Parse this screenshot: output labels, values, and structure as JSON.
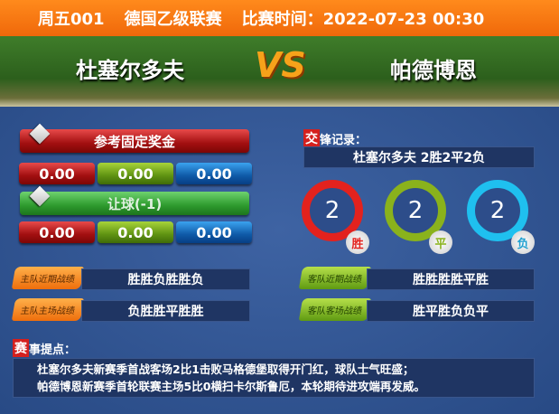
{
  "header": {
    "match_no": "周五001",
    "league": "德国乙级联赛",
    "time_label": "比赛时间：2022-07-23 00:30"
  },
  "teams": {
    "home": "杜塞尔多夫",
    "away": "帕德博恩",
    "vs": "VS"
  },
  "odds": {
    "fixed_title": "参考固定奖金",
    "fixed": [
      "0.00",
      "0.00",
      "0.00"
    ],
    "handicap_title": "让球(-1)",
    "handicap": [
      "0.00",
      "0.00",
      "0.00"
    ]
  },
  "h2h": {
    "icon_char": "交",
    "title": "锋记录：",
    "summary": "杜塞尔多夫 2胜2平2负",
    "win": {
      "count": "2",
      "label": "胜",
      "color": "#e3221e"
    },
    "draw": {
      "count": "2",
      "label": "平",
      "color": "#8ab21c"
    },
    "loss": {
      "count": "2",
      "label": "负",
      "color": "#1fc0ef"
    }
  },
  "form": {
    "home_recent_label": "主队近期战绩",
    "home_recent": "胜胜负胜胜负",
    "home_home_label": "主队主场战绩",
    "home_home": "负胜胜平胜胜",
    "away_recent_label": "客队近期战绩",
    "away_recent": "胜胜胜胜平胜",
    "away_away_label": "客队客场战绩",
    "away_away": "胜平胜负负平"
  },
  "tips": {
    "icon_char": "赛",
    "title": "事提点：",
    "lines": [
      "杜塞尔多夫新赛季首战客场2比1击败马格德堡取得开门红，球队士气旺盛；",
      "帕德博恩新赛季首轮联赛主场5比0横扫卡尔斯鲁厄，本轮期待进攻端再发威。"
    ]
  }
}
